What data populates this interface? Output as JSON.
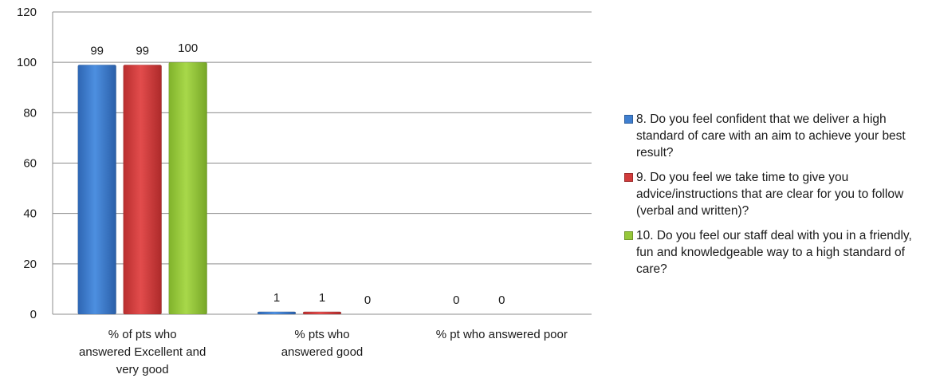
{
  "chart_data": {
    "type": "bar",
    "categories": [
      "% of pts who answered Excellent and very good",
      "% pts who answered good",
      "% pt who answered poor"
    ],
    "category_lines": [
      [
        "% of pts who",
        "answered Excellent and",
        "very good"
      ],
      [
        "% pts who",
        "answered good"
      ],
      [
        "% pt who answered poor"
      ]
    ],
    "series": [
      {
        "name": "8. Do you feel confident that we deliver a high standard of care with an aim to achieve your best result?",
        "color": "#3f7fd0",
        "values": [
          99,
          1,
          0
        ]
      },
      {
        "name": "9. Do you feel we take time to give you advice/instructions that are clear for you to follow (verbal and written)?",
        "color": "#d23c3c",
        "values": [
          99,
          1,
          0
        ]
      },
      {
        "name": "10. Do you feel our staff deal with you in a friendly, fun and knowledgeable way to a high standard of care?",
        "color": "#96c83a",
        "values": [
          100,
          0,
          0
        ]
      }
    ],
    "data_labels": [
      [
        "99",
        "99",
        "100"
      ],
      [
        "1",
        "1",
        "0"
      ],
      [
        "0",
        "0"
      ]
    ],
    "yticks": [
      "0",
      "20",
      "40",
      "60",
      "80",
      "100",
      "120"
    ],
    "ylim": [
      0,
      120
    ],
    "grid": true,
    "legend_position": "right"
  }
}
